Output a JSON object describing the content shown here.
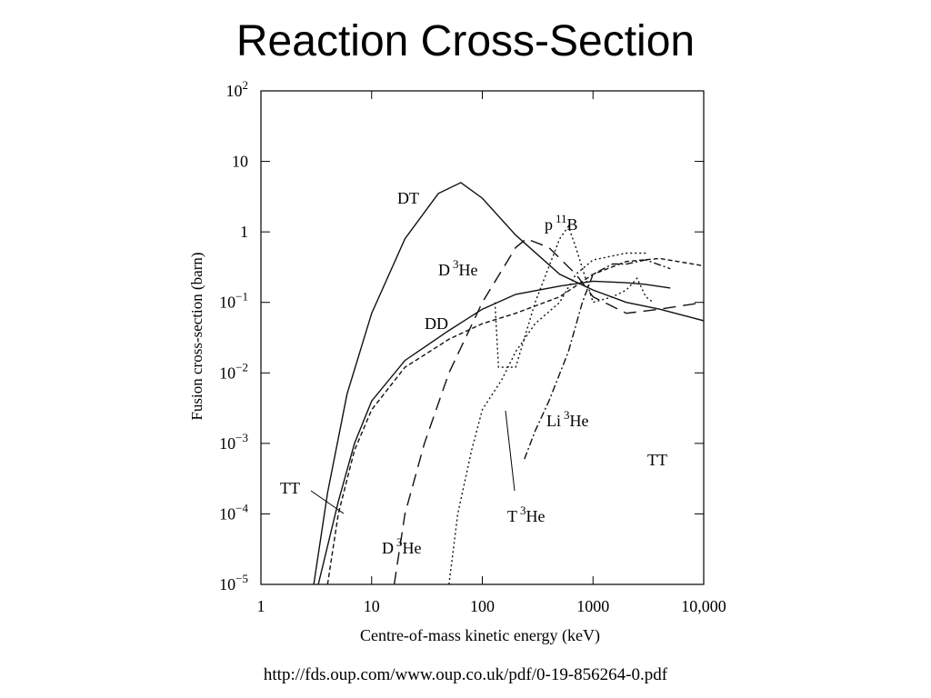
{
  "slide": {
    "title": "Reaction Cross-Section",
    "source_url": "http://fds.oup.com/www.oup.co.uk/pdf/0-19-856264-0.pdf"
  },
  "chart_data": {
    "type": "line",
    "xlabel": "Centre-of-mass kinetic energy (keV)",
    "ylabel": "Fusion cross-section (barn)",
    "x_scale": "log",
    "y_scale": "log",
    "xlim": [
      1,
      10000
    ],
    "ylim": [
      1e-05,
      100
    ],
    "x_ticks": [
      {
        "value": 1,
        "label": "1"
      },
      {
        "value": 10,
        "label": "10"
      },
      {
        "value": 100,
        "label": "100"
      },
      {
        "value": 1000,
        "label": "1000"
      },
      {
        "value": 10000,
        "label": "10,000"
      }
    ],
    "y_ticks": [
      {
        "value": 100,
        "base": "10",
        "exp": "2"
      },
      {
        "value": 10,
        "base": "10",
        "exp": ""
      },
      {
        "value": 1,
        "base": "1",
        "exp": ""
      },
      {
        "value": 0.1,
        "base": "10",
        "exp": "−1"
      },
      {
        "value": 0.01,
        "base": "10",
        "exp": "−2"
      },
      {
        "value": 0.001,
        "base": "10",
        "exp": "−3"
      },
      {
        "value": 0.0001,
        "base": "10",
        "exp": "−4"
      },
      {
        "value": 1e-05,
        "base": "10",
        "exp": "−5"
      }
    ],
    "grid": false,
    "series": [
      {
        "name": "DT",
        "dash": "solid",
        "x": [
          3,
          4,
          6,
          10,
          20,
          40,
          64,
          100,
          200,
          500,
          1000,
          2000,
          4000,
          10000
        ],
        "y": [
          1e-05,
          0.0002,
          0.005,
          0.07,
          0.8,
          3.5,
          5,
          3,
          0.9,
          0.25,
          0.15,
          0.1,
          0.08,
          0.055
        ]
      },
      {
        "name": "DD",
        "dash": "solid",
        "x": [
          3.3,
          5,
          7,
          10,
          20,
          50,
          100,
          200,
          500,
          1000,
          2000,
          3000,
          5000
        ],
        "y": [
          1e-05,
          0.00015,
          0.001,
          0.004,
          0.015,
          0.04,
          0.08,
          0.13,
          0.17,
          0.2,
          0.19,
          0.18,
          0.16
        ]
      },
      {
        "name": "TT",
        "dash": "5,3",
        "x": [
          4,
          5,
          7,
          10,
          20,
          50,
          100,
          200,
          500,
          1000,
          2000,
          4000,
          10000
        ],
        "y": [
          1e-05,
          0.0001,
          0.0008,
          0.003,
          0.012,
          0.03,
          0.05,
          0.07,
          0.12,
          0.25,
          0.38,
          0.42,
          0.33
        ]
      },
      {
        "name": "D³He",
        "dash": "14,8",
        "x": [
          16,
          20,
          30,
          50,
          100,
          200,
          250,
          400,
          700,
          1000,
          2000,
          4000,
          10000
        ],
        "y": [
          1e-05,
          0.0001,
          0.001,
          0.01,
          0.1,
          0.6,
          0.8,
          0.6,
          0.25,
          0.12,
          0.07,
          0.08,
          0.1
        ]
      },
      {
        "name": "p¹¹B",
        "dash": "2,3",
        "x": [
          130,
          140,
          200,
          300,
          500,
          600,
          700,
          1000,
          1500,
          2000,
          2500,
          3000,
          3500
        ],
        "y": [
          0.1,
          0.012,
          0.012,
          0.1,
          0.8,
          1.2,
          0.6,
          0.1,
          0.12,
          0.15,
          0.22,
          0.12,
          0.1
        ]
      },
      {
        "name": "T³He",
        "dash": "2,3",
        "x": [
          50,
          60,
          80,
          100,
          150,
          200,
          300,
          500,
          700,
          1000,
          2000,
          3000
        ],
        "y": [
          1e-05,
          0.0001,
          0.0008,
          0.003,
          0.008,
          0.02,
          0.05,
          0.1,
          0.25,
          0.4,
          0.5,
          0.5
        ]
      },
      {
        "name": "Li³He",
        "dash": "8,3,2,3",
        "x": [
          240,
          300,
          400,
          600,
          800,
          1000,
          1500,
          2000,
          3000,
          5000
        ],
        "y": [
          0.0006,
          0.0015,
          0.004,
          0.02,
          0.1,
          0.25,
          0.35,
          0.35,
          0.4,
          0.3
        ]
      }
    ],
    "annotations": [
      {
        "series": "DT",
        "base": "DT",
        "sup": "",
        "tail": ""
      },
      {
        "series": "DD",
        "base": "DD",
        "sup": "",
        "tail": ""
      },
      {
        "series": "TT",
        "base": "TT",
        "sup": "",
        "tail": ""
      },
      {
        "series": "TT",
        "base": "TT",
        "sup": "",
        "tail": ""
      },
      {
        "series": "D³He",
        "base": "D",
        "sup": "3",
        "tail": "He"
      },
      {
        "series": "D³He",
        "base": "D",
        "sup": "3",
        "tail": "He"
      },
      {
        "series": "p¹¹B",
        "base": "p",
        "sup": "11",
        "tail": "B"
      },
      {
        "series": "T³He",
        "base": "T",
        "sup": "3",
        "tail": "He"
      },
      {
        "series": "Li³He",
        "base": "Li",
        "sup": "3",
        "tail": "He"
      }
    ]
  }
}
